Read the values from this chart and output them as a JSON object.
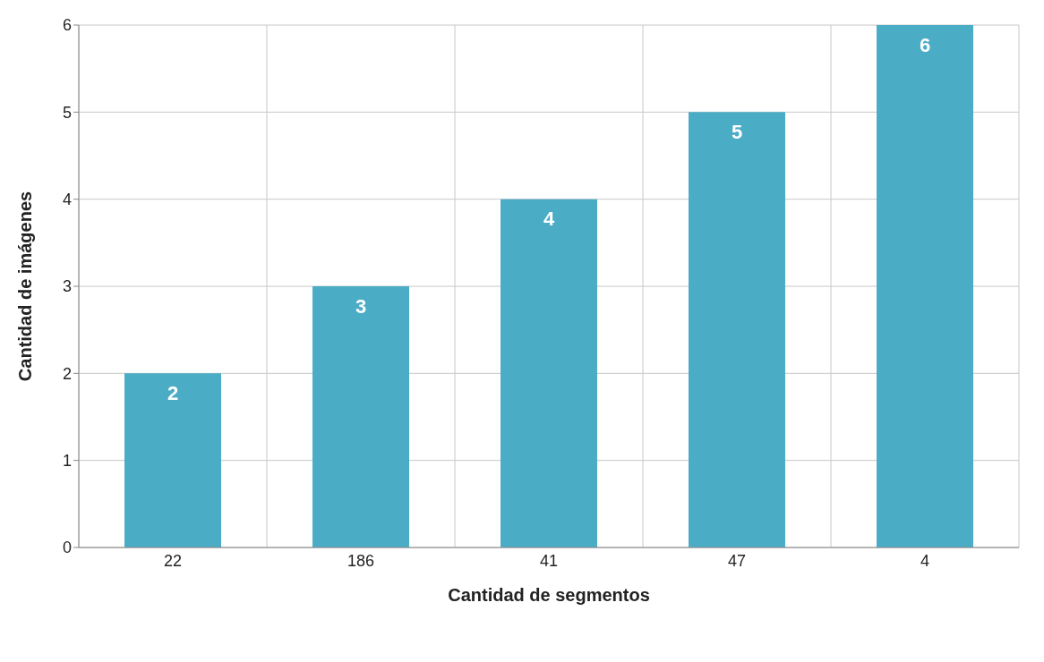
{
  "chart_data": {
    "type": "bar",
    "xlabel": "Cantidad de segmentos",
    "ylabel": "Cantidad de imágenes",
    "categories": [
      "22",
      "186",
      "41",
      "47",
      "4"
    ],
    "values": [
      2,
      3,
      4,
      5,
      6
    ],
    "color": "#4bacc6",
    "ylim": [
      0,
      6
    ],
    "yticks": [
      0,
      1,
      2,
      3,
      4,
      5,
      6
    ],
    "grid": true,
    "data_labels": true
  }
}
